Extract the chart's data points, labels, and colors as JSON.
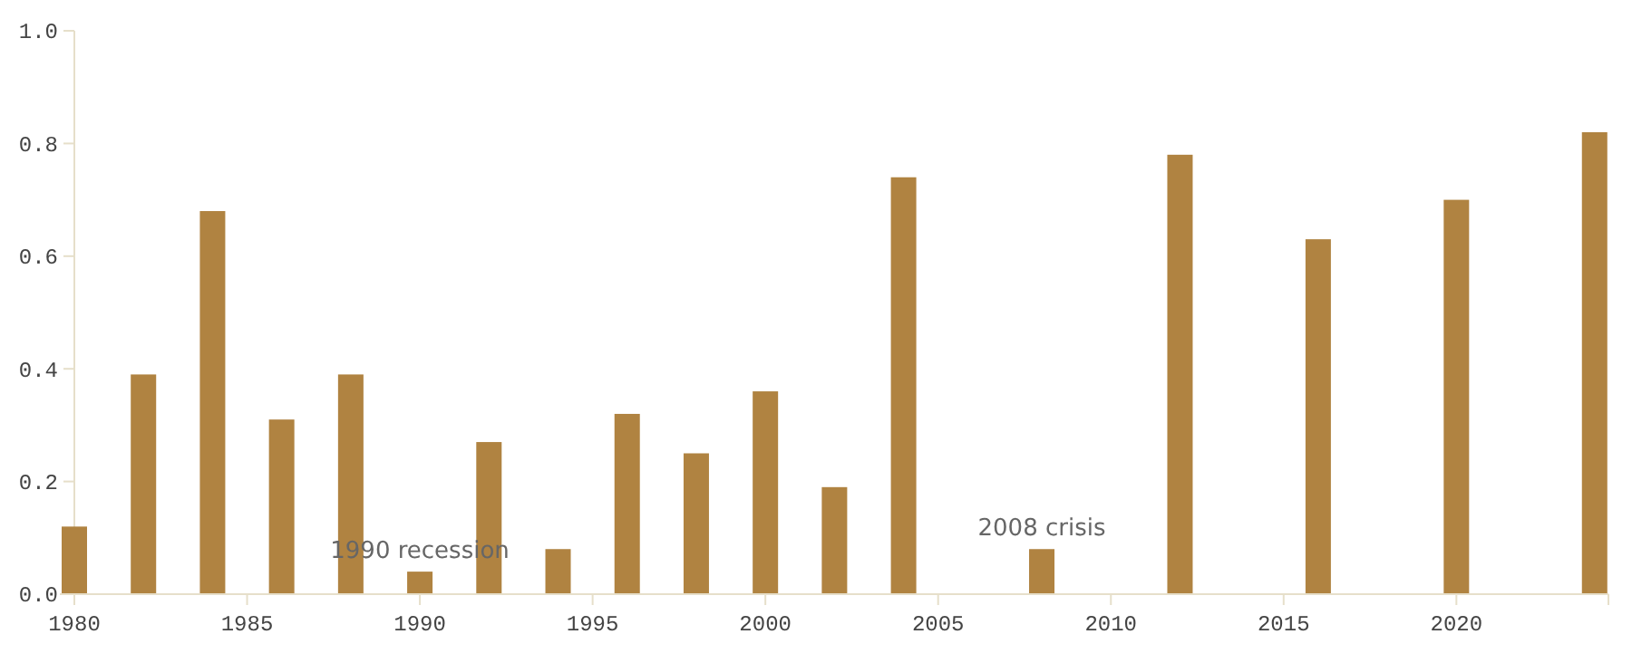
{
  "chart_data": {
    "type": "bar",
    "x": [
      1980,
      1982,
      1984,
      1986,
      1988,
      1990,
      1992,
      1994,
      1996,
      1998,
      2000,
      2002,
      2004,
      2008,
      2012,
      2016,
      2020,
      2024
    ],
    "values": [
      0.12,
      0.39,
      0.68,
      0.31,
      0.39,
      0.04,
      0.27,
      0.08,
      0.32,
      0.25,
      0.36,
      0.19,
      0.74,
      0.08,
      0.78,
      0.63,
      0.7,
      0.82
    ],
    "color": "#b08341",
    "xlim": [
      1980,
      2024.4
    ],
    "xticks": [
      1980,
      1985,
      1990,
      1995,
      2000,
      2005,
      2010,
      2015,
      2020
    ],
    "ylim": [
      0,
      1.0
    ],
    "yticks": [
      {
        "value": 0,
        "label": "0.0"
      },
      {
        "value": 0.2,
        "label": "0.2"
      },
      {
        "value": 0.4,
        "label": "0.4"
      },
      {
        "value": 0.6,
        "label": "0.6"
      },
      {
        "value": 0.8,
        "label": "0.8"
      },
      {
        "value": 1.0,
        "label": "1.0"
      }
    ],
    "annotations": [
      {
        "text": "1990 recession",
        "x": 1990,
        "y": 0.04
      },
      {
        "text": "2008 crisis",
        "x": 2008,
        "y": 0.08
      }
    ],
    "grid": false
  }
}
